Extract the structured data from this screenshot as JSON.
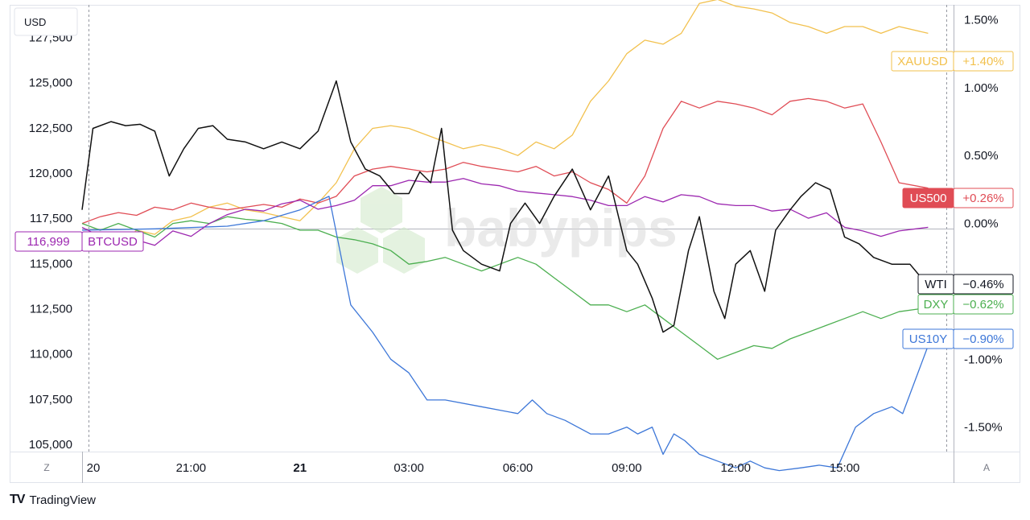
{
  "header": {
    "currency_label": "USD"
  },
  "watermark": {
    "text": "babypips"
  },
  "footer": {
    "brand_mark": "TV",
    "brand_name": "TradingView"
  },
  "corners": {
    "timezone_button": "Z",
    "auto_scale_button": "A"
  },
  "colors": {
    "XAUUSD": "#f2c14e",
    "US500": "#e04c55",
    "BTCUSD": "#9c27b0",
    "WTI": "#111111",
    "DXY": "#4caf50",
    "US10Y": "#3d77d8"
  },
  "chart_data": {
    "type": "line",
    "x_tick_labels": [
      "20",
      "21:00",
      "21",
      "03:00",
      "06:00",
      "09:00",
      "12:00",
      "15:00"
    ],
    "x_tick_hours": [
      18,
      21,
      24,
      27,
      30,
      33,
      36,
      39
    ],
    "x_range_hours": [
      18,
      42
    ],
    "left_axis": {
      "unit": "USD",
      "ticks": [
        105000,
        107500,
        110000,
        112500,
        115000,
        117500,
        120000,
        122500,
        125000,
        127500
      ],
      "range": [
        104600,
        129300
      ]
    },
    "right_axis": {
      "ticks": [
        "1.50%",
        "1.00%",
        "0.50%",
        "0.00%",
        "-0.50%",
        "-1.00%",
        "-1.50%"
      ],
      "tick_values": [
        1.5,
        1.0,
        0.5,
        0.0,
        -0.5,
        -1.0,
        -1.5
      ],
      "range": [
        -1.68,
        1.61
      ]
    },
    "price_labels": [
      {
        "series": "XAUUSD",
        "label": "XAUUSD",
        "value": "+1.40%"
      },
      {
        "series": "US500",
        "label": "US500",
        "value": "+0.26%"
      },
      {
        "series": "BTCUSD",
        "label": "BTCUSD",
        "value": "116,999"
      },
      {
        "series": "WTI",
        "label": "WTI",
        "value": "−0.46%"
      },
      {
        "series": "DXY",
        "label": "DXY",
        "value": "−0.62%"
      },
      {
        "series": "US10Y",
        "label": "US10Y",
        "value": "−0.90%"
      }
    ],
    "series": [
      {
        "name": "XAUUSD",
        "axis": "right",
        "x": [
          18,
          18.5,
          19,
          19.5,
          20,
          20.5,
          21,
          21.5,
          22,
          22.5,
          23,
          23.5,
          24,
          24.5,
          25,
          25.5,
          26,
          26.5,
          27,
          27.5,
          28,
          28.5,
          29,
          29.5,
          30,
          30.5,
          31,
          31.5,
          32,
          32.5,
          33,
          33.5,
          34,
          34.5,
          35,
          35.5,
          36,
          36.5,
          37,
          37.5,
          38,
          38.5,
          39,
          39.5,
          40,
          40.5,
          41.3
        ],
        "y": [
          -0.15,
          -0.12,
          -0.18,
          -0.05,
          -0.08,
          0.02,
          0.05,
          0.12,
          0.15,
          0.1,
          0.08,
          0.05,
          0.02,
          0.15,
          0.3,
          0.55,
          0.7,
          0.72,
          0.7,
          0.65,
          0.6,
          0.55,
          0.58,
          0.55,
          0.5,
          0.6,
          0.55,
          0.65,
          0.9,
          1.05,
          1.25,
          1.35,
          1.32,
          1.4,
          1.62,
          1.65,
          1.6,
          1.58,
          1.55,
          1.48,
          1.45,
          1.4,
          1.45,
          1.45,
          1.4,
          1.45,
          1.4
        ]
      },
      {
        "name": "US500",
        "axis": "right",
        "x": [
          18,
          18.5,
          19,
          19.5,
          20,
          20.5,
          21,
          21.5,
          22,
          22.5,
          23,
          23.5,
          24,
          24.5,
          25,
          25.5,
          26,
          26.5,
          27,
          27.5,
          28,
          28.5,
          29,
          29.5,
          30,
          30.5,
          31,
          31.5,
          32,
          32.5,
          33,
          33.5,
          34,
          34.5,
          35,
          35.5,
          36,
          36.5,
          37,
          37.5,
          38,
          38.5,
          39,
          39.5,
          40,
          40.5,
          41.3
        ],
        "y": [
          0.0,
          0.05,
          0.08,
          0.06,
          0.12,
          0.1,
          0.15,
          0.12,
          0.1,
          0.12,
          0.14,
          0.12,
          0.18,
          0.15,
          0.2,
          0.35,
          0.4,
          0.42,
          0.4,
          0.38,
          0.4,
          0.45,
          0.42,
          0.4,
          0.38,
          0.42,
          0.35,
          0.38,
          0.3,
          0.25,
          0.15,
          0.35,
          0.7,
          0.9,
          0.85,
          0.9,
          0.88,
          0.85,
          0.8,
          0.9,
          0.92,
          0.9,
          0.85,
          0.88,
          0.6,
          0.3,
          0.26
        ]
      },
      {
        "name": "BTCUSD",
        "axis": "left",
        "x": [
          18,
          18.5,
          19,
          19.5,
          20,
          20.5,
          21,
          21.5,
          22,
          22.5,
          23,
          23.5,
          24,
          24.5,
          25,
          25.5,
          26,
          26.5,
          27,
          27.5,
          28,
          28.5,
          29,
          29.5,
          30,
          30.5,
          31,
          31.5,
          32,
          32.5,
          33,
          33.5,
          34,
          34.5,
          35,
          35.5,
          36,
          36.5,
          37,
          37.5,
          38,
          38.5,
          39,
          39.5,
          40,
          40.5,
          41.3
        ],
        "y": [
          116999,
          116500,
          116400,
          116300,
          116000,
          116800,
          116500,
          117200,
          117700,
          118000,
          117900,
          118300,
          118500,
          118000,
          118200,
          118500,
          119300,
          119300,
          119600,
          119500,
          119500,
          119700,
          119400,
          119300,
          119000,
          118900,
          118800,
          118700,
          118500,
          118200,
          118200,
          118700,
          118400,
          118800,
          118700,
          118300,
          118200,
          118200,
          117900,
          118000,
          117500,
          117800,
          117000,
          116800,
          116500,
          116800,
          117000
        ]
      },
      {
        "name": "WTI",
        "axis": "right",
        "x": [
          18,
          18.3,
          18.8,
          19.2,
          19.6,
          20.0,
          20.4,
          20.8,
          21.2,
          21.6,
          22.0,
          22.5,
          23.0,
          23.5,
          24.0,
          24.5,
          25.0,
          25.4,
          25.8,
          26.2,
          26.6,
          27.0,
          27.3,
          27.6,
          27.9,
          28.2,
          28.5,
          29.0,
          29.5,
          29.8,
          30.2,
          30.6,
          31.0,
          31.5,
          32.0,
          32.5,
          33.0,
          33.3,
          33.7,
          34.0,
          34.3,
          34.7,
          35.0,
          35.4,
          35.7,
          36.0,
          36.4,
          36.8,
          37.1,
          37.5,
          37.8,
          38.2,
          38.6,
          39.0,
          39.4,
          39.8,
          40.3,
          40.8,
          41.3
        ],
        "y": [
          0.1,
          0.7,
          0.75,
          0.72,
          0.73,
          0.68,
          0.35,
          0.55,
          0.7,
          0.72,
          0.62,
          0.6,
          0.55,
          0.6,
          0.55,
          0.68,
          1.05,
          0.6,
          0.4,
          0.35,
          0.22,
          0.22,
          0.38,
          0.3,
          0.7,
          -0.05,
          -0.2,
          -0.3,
          -0.35,
          0.0,
          0.15,
          0.0,
          0.2,
          0.4,
          0.1,
          0.35,
          -0.2,
          -0.3,
          -0.55,
          -0.8,
          -0.75,
          -0.2,
          0.05,
          -0.5,
          -0.7,
          -0.3,
          -0.2,
          -0.5,
          -0.05,
          0.1,
          0.2,
          0.3,
          0.25,
          -0.1,
          -0.15,
          -0.25,
          -0.3,
          -0.3,
          -0.46
        ]
      },
      {
        "name": "DXY",
        "axis": "right",
        "x": [
          18,
          18.5,
          19,
          19.5,
          20,
          20.5,
          21,
          21.5,
          22,
          22.5,
          23,
          23.5,
          24,
          24.5,
          25,
          25.5,
          26,
          26.5,
          27,
          27.5,
          28,
          28.5,
          29,
          29.5,
          30,
          30.5,
          31,
          31.5,
          32,
          32.5,
          33,
          33.5,
          34,
          34.5,
          35,
          35.5,
          36,
          36.5,
          37,
          37.5,
          38,
          38.5,
          39,
          39.5,
          40,
          40.5,
          41.3
        ],
        "y": [
          0.0,
          -0.05,
          0.0,
          -0.05,
          -0.1,
          0.0,
          0.02,
          0.0,
          0.05,
          0.03,
          0.02,
          0.0,
          -0.05,
          -0.05,
          -0.1,
          -0.12,
          -0.15,
          -0.2,
          -0.3,
          -0.28,
          -0.25,
          -0.3,
          -0.35,
          -0.3,
          -0.25,
          -0.3,
          -0.4,
          -0.5,
          -0.6,
          -0.6,
          -0.65,
          -0.6,
          -0.7,
          -0.8,
          -0.9,
          -1.0,
          -0.95,
          -0.9,
          -0.92,
          -0.85,
          -0.8,
          -0.75,
          -0.7,
          -0.65,
          -0.7,
          -0.65,
          -0.62
        ]
      },
      {
        "name": "US10Y",
        "axis": "right",
        "x": [
          18,
          20,
          22,
          23,
          24,
          24.8,
          25.4,
          26.0,
          26.5,
          27.0,
          27.5,
          28.0,
          29.0,
          30.0,
          30.4,
          30.8,
          31.3,
          32.0,
          32.5,
          33.0,
          33.3,
          33.7,
          34.0,
          34.3,
          34.6,
          35.0,
          35.5,
          36.0,
          36.4,
          36.8,
          37.2,
          37.8,
          38.3,
          38.8,
          39.3,
          39.8,
          40.3,
          40.6,
          41.3
        ],
        "y": [
          -0.05,
          -0.04,
          -0.02,
          0.02,
          0.1,
          0.2,
          -0.6,
          -0.8,
          -1.0,
          -1.1,
          -1.3,
          -1.3,
          -1.35,
          -1.4,
          -1.3,
          -1.4,
          -1.45,
          -1.55,
          -1.55,
          -1.5,
          -1.55,
          -1.5,
          -1.7,
          -1.55,
          -1.6,
          -1.7,
          -1.75,
          -1.8,
          -1.75,
          -1.8,
          -1.82,
          -1.8,
          -1.78,
          -1.8,
          -1.5,
          -1.4,
          -1.35,
          -1.4,
          -0.9
        ]
      }
    ]
  }
}
